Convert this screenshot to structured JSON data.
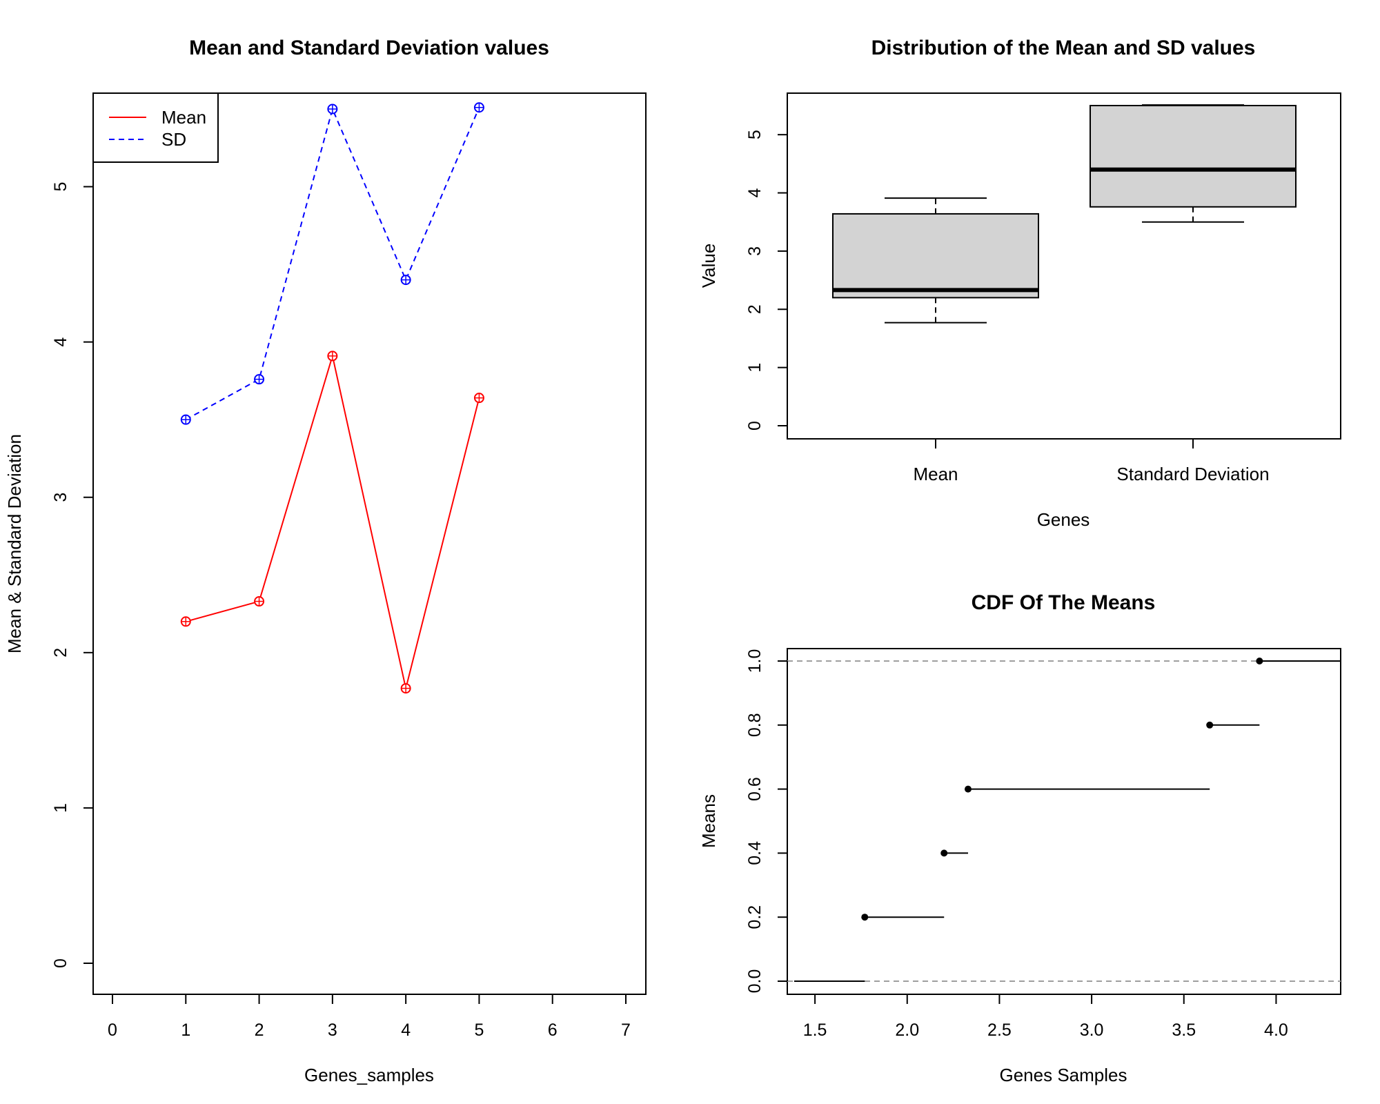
{
  "chart_data": [
    {
      "type": "line",
      "title": "Mean and Standard Deviation values",
      "xlabel": "Genes_samples",
      "ylabel": "Mean & Standard Deviation",
      "xlim": [
        0,
        7
      ],
      "ylim": [
        0,
        5.5
      ],
      "xticks": [
        0,
        1,
        2,
        3,
        4,
        5,
        6,
        7
      ],
      "yticks": [
        0,
        1,
        2,
        3,
        4,
        5
      ],
      "x": [
        1,
        2,
        3,
        4,
        5
      ],
      "series": [
        {
          "name": "Mean",
          "values": [
            2.2,
            2.33,
            3.91,
            1.77,
            3.64
          ],
          "color": "#ff0000",
          "line": "solid"
        },
        {
          "name": "SD",
          "values": [
            3.5,
            3.76,
            5.5,
            4.4,
            5.51
          ],
          "color": "#0000ff",
          "line": "dashed"
        }
      ],
      "legend": "top-left",
      "grid": false
    },
    {
      "type": "box",
      "title": "Distribution of the Mean and SD values",
      "xlabel": "Genes",
      "ylabel": "Value",
      "ylim": [
        0,
        5.5
      ],
      "yticks": [
        0,
        1,
        2,
        3,
        4,
        5
      ],
      "categories": [
        "Mean",
        "Standard Deviation"
      ],
      "boxes": [
        {
          "min": 1.77,
          "q1": 2.2,
          "median": 2.33,
          "q3": 3.64,
          "max": 3.91
        },
        {
          "min": 3.5,
          "q1": 3.76,
          "median": 4.4,
          "q3": 5.5,
          "max": 5.51
        }
      ],
      "box_fill": "#d3d3d3",
      "grid": false
    },
    {
      "type": "step",
      "title": "CDF Of The Means",
      "xlabel": "Genes Samples",
      "ylabel": "Means",
      "xlim": [
        1.35,
        4.35
      ],
      "ylim": [
        0,
        1
      ],
      "xticks": [
        "1.5",
        "2.0",
        "2.5",
        "3.0",
        "3.5",
        "4.0"
      ],
      "yticks": [
        "0.0",
        "0.2",
        "0.4",
        "0.6",
        "0.8",
        "1.0"
      ],
      "points": [
        {
          "x": 1.77,
          "y": 0.2
        },
        {
          "x": 2.2,
          "y": 0.4
        },
        {
          "x": 2.33,
          "y": 0.6
        },
        {
          "x": 3.64,
          "y": 0.8
        },
        {
          "x": 3.91,
          "y": 1.0
        }
      ],
      "reference_lines": [
        0,
        1
      ],
      "grid": false
    }
  ]
}
